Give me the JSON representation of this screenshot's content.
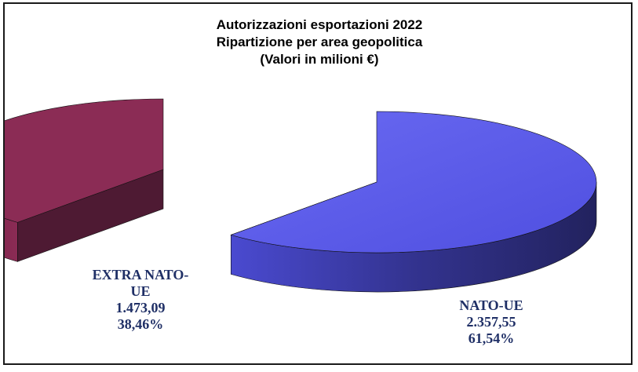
{
  "chart_data": {
    "type": "pie",
    "title": [
      "Autorizzazioni esportazioni 2022",
      "Ripartizione per area geopolitica",
      "(Valori in milioni €)"
    ],
    "series": [
      {
        "name": "",
        "slices": [
          {
            "label": "NATO-UE",
            "value_text": "2.357,55",
            "value": 2357.55,
            "percent_text": "61,54%",
            "percent": 61.54,
            "color": "#5a5ae6",
            "side_color": "#2c2c78"
          },
          {
            "label": "EXTRA NATO-UE",
            "value_text": "1.473,09",
            "value": 1473.09,
            "percent_text": "38,46%",
            "percent": 38.46,
            "color": "#8b2c55",
            "side_color": "#5a1a36"
          }
        ]
      }
    ],
    "style": "3d-exploded-pie",
    "legend": "none"
  },
  "labels": {
    "extra_line1": "EXTRA NATO-",
    "extra_line2": "UE",
    "nato_line1": "NATO-UE"
  }
}
